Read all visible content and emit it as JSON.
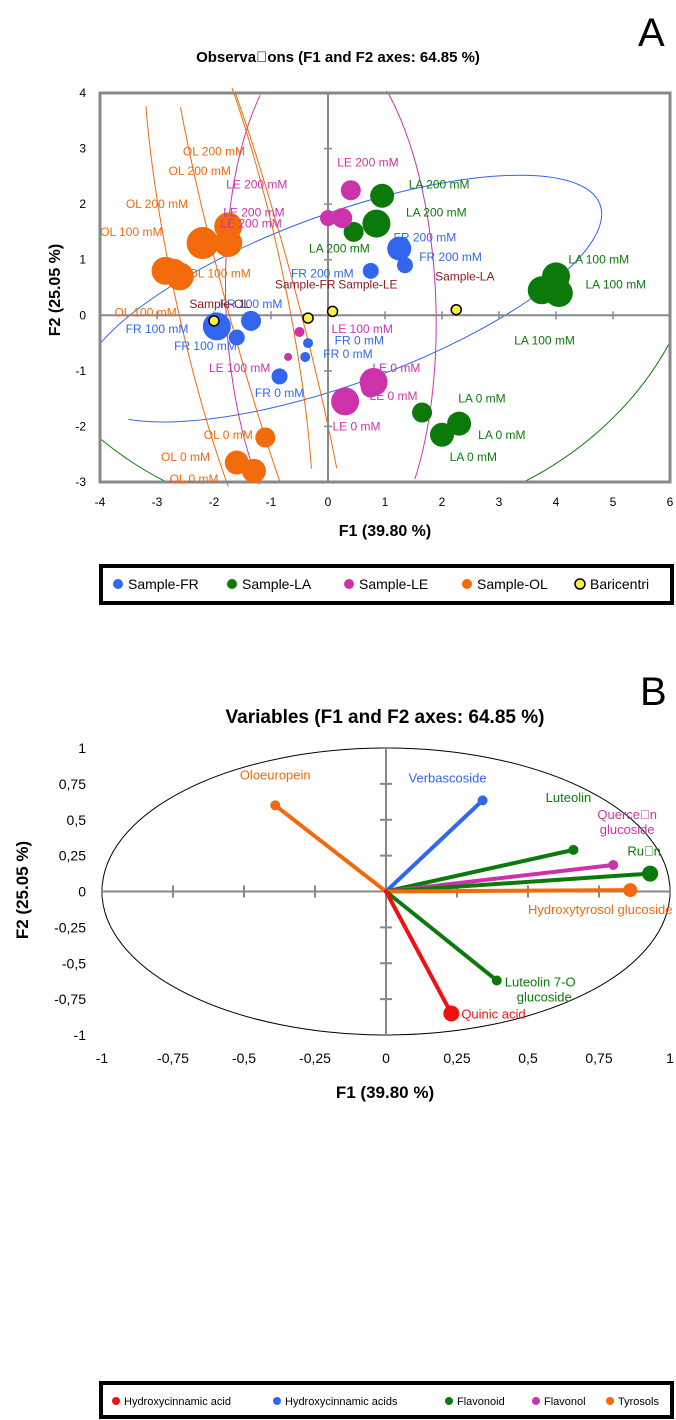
{
  "colors": {
    "FR": "#3366ee",
    "LA": "#0b7a0b",
    "LE": "#cc33aa",
    "OL": "#f26a0a",
    "bary_fill": "#ffee44",
    "bary_text": "#8b1a1a",
    "red": "#ee1111"
  },
  "chart_data": [
    {
      "type": "scatter",
      "panel": "A",
      "title": "Observa\u0000ons (F1 and F2 axes: 64.85 %)",
      "xlabel": "F1 (39.80 %)",
      "ylabel": "F2 (25.05 %)",
      "xlim": [
        -4,
        6
      ],
      "ylim": [
        -3,
        4
      ],
      "xticks": [
        "-4",
        "-3",
        "-2",
        "-1",
        "0",
        "1",
        "2",
        "3",
        "4",
        "5",
        "6"
      ],
      "yticks": [
        "-3",
        "-2",
        "-1",
        "0",
        "1",
        "2",
        "3",
        "4"
      ],
      "legend": [
        "Sample-FR",
        "Sample-LA",
        "Sample-LE",
        "Sample-OL",
        "Baricentri"
      ],
      "points": [
        {
          "s": "FR",
          "x": -1.95,
          "y": -0.2,
          "r": "xl"
        },
        {
          "s": "FR",
          "x": -1.35,
          "y": -0.1,
          "r": "m"
        },
        {
          "s": "FR",
          "x": -1.6,
          "y": -0.4,
          "r": "s"
        },
        {
          "s": "FR",
          "x": -0.85,
          "y": -1.1,
          "r": "s"
        },
        {
          "s": "FR",
          "x": -0.35,
          "y": -0.5,
          "r": "xs"
        },
        {
          "s": "FR",
          "x": -0.4,
          "y": -0.75,
          "r": "xs"
        },
        {
          "s": "FR",
          "x": 1.25,
          "y": 1.2,
          "r": "l"
        },
        {
          "s": "FR",
          "x": 1.35,
          "y": 0.9,
          "r": "s"
        },
        {
          "s": "FR",
          "x": 0.75,
          "y": 0.8,
          "r": "s"
        },
        {
          "s": "LA",
          "x": 4.0,
          "y": 0.7,
          "r": "xl"
        },
        {
          "s": "LA",
          "x": 3.75,
          "y": 0.45,
          "r": "xl"
        },
        {
          "s": "LA",
          "x": 4.05,
          "y": 0.4,
          "r": "xl"
        },
        {
          "s": "LA",
          "x": 0.95,
          "y": 2.15,
          "r": "l"
        },
        {
          "s": "LA",
          "x": 0.85,
          "y": 1.65,
          "r": "xl"
        },
        {
          "s": "LA",
          "x": 0.45,
          "y": 1.5,
          "r": "m"
        },
        {
          "s": "LA",
          "x": 2.3,
          "y": -1.95,
          "r": "l"
        },
        {
          "s": "LA",
          "x": 2.0,
          "y": -2.15,
          "r": "l"
        },
        {
          "s": "LA",
          "x": 1.65,
          "y": -1.75,
          "r": "m"
        },
        {
          "s": "LE",
          "x": 0.4,
          "y": 2.25,
          "r": "m"
        },
        {
          "s": "LE",
          "x": 0.0,
          "y": 1.75,
          "r": "s"
        },
        {
          "s": "LE",
          "x": 0.25,
          "y": 1.75,
          "r": "m"
        },
        {
          "s": "LE",
          "x": 0.8,
          "y": -1.2,
          "r": "xl"
        },
        {
          "s": "LE",
          "x": 0.75,
          "y": -1.3,
          "r": "m"
        },
        {
          "s": "LE",
          "x": 0.3,
          "y": -1.55,
          "r": "xl"
        },
        {
          "s": "LE",
          "x": -0.5,
          "y": -0.3,
          "r": "xs"
        },
        {
          "s": "LE",
          "x": -0.7,
          "y": -0.75,
          "r": "xxs"
        },
        {
          "s": "OL",
          "x": -2.2,
          "y": 1.3,
          "r": "xxl"
        },
        {
          "s": "OL",
          "x": -1.75,
          "y": 1.6,
          "r": "xl"
        },
        {
          "s": "OL",
          "x": -1.75,
          "y": 1.3,
          "r": "xl"
        },
        {
          "s": "OL",
          "x": -2.85,
          "y": 0.8,
          "r": "xl"
        },
        {
          "s": "OL",
          "x": -2.6,
          "y": 0.7,
          "r": "xl"
        },
        {
          "s": "OL",
          "x": -2.7,
          "y": 0.8,
          "r": "l"
        },
        {
          "s": "OL",
          "x": -1.6,
          "y": -2.65,
          "r": "l"
        },
        {
          "s": "OL",
          "x": -1.3,
          "y": -2.8,
          "r": "l"
        },
        {
          "s": "OL",
          "x": -1.1,
          "y": -2.2,
          "r": "m"
        }
      ],
      "barycenters": [
        {
          "label": "Sample-OL",
          "x": -2.0,
          "y": -0.1,
          "lx": -1.9,
          "ly": 0.2
        },
        {
          "label": "Sample-FR",
          "x": -0.35,
          "y": -0.05,
          "lx": -0.4,
          "ly": 0.55
        },
        {
          "label": "Sample-LE",
          "x": 0.08,
          "y": 0.07,
          "lx": 0.7,
          "ly": 0.55
        },
        {
          "label": "Sample-LA",
          "x": 2.25,
          "y": 0.1,
          "lx": 2.4,
          "ly": 0.7
        }
      ],
      "labels": [
        {
          "s": "OL",
          "t": "OL 200 mM",
          "x": -2.0,
          "y": 2.95
        },
        {
          "s": "OL",
          "t": "OL 200 mM",
          "x": -2.25,
          "y": 2.6
        },
        {
          "s": "OL",
          "t": "OL 200 mM",
          "x": -3.0,
          "y": 2.0
        },
        {
          "s": "OL",
          "t": "OL 100 mM",
          "x": -3.45,
          "y": 1.5
        },
        {
          "s": "OL",
          "t": "OL 100 mM",
          "x": -1.9,
          "y": 0.75
        },
        {
          "s": "OL",
          "t": "OL 100 mM",
          "x": -3.2,
          "y": 0.05
        },
        {
          "s": "OL",
          "t": "OL 0 mM",
          "x": -1.75,
          "y": -2.15
        },
        {
          "s": "OL",
          "t": "OL 0 mM",
          "x": -2.5,
          "y": -2.55
        },
        {
          "s": "OL",
          "t": "OL 0 mM",
          "x": -2.35,
          "y": -2.95
        },
        {
          "s": "LE",
          "t": "LE 200 mM",
          "x": -1.25,
          "y": 2.35
        },
        {
          "s": "LE",
          "t": "LE 200 mM",
          "x": -1.3,
          "y": 1.85
        },
        {
          "s": "LE",
          "t": "LE 200 mM",
          "x": -1.35,
          "y": 1.65
        },
        {
          "s": "LE",
          "t": "LE 200 mM",
          "x": 0.7,
          "y": 2.75
        },
        {
          "s": "LE",
          "t": "LE 100 mM",
          "x": 0.6,
          "y": -0.25
        },
        {
          "s": "LE",
          "t": "LE 100 mM",
          "x": -1.55,
          "y": -0.95
        },
        {
          "s": "LE",
          "t": "LE 0 mM",
          "x": 1.2,
          "y": -0.95
        },
        {
          "s": "LE",
          "t": "LE 0 mM",
          "x": 1.15,
          "y": -1.45
        },
        {
          "s": "LE",
          "t": "LE 0 mM",
          "x": 0.5,
          "y": -2.0
        },
        {
          "s": "LA",
          "t": "LA 200 mM",
          "x": 1.95,
          "y": 2.35
        },
        {
          "s": "LA",
          "t": "LA 200 mM",
          "x": 1.9,
          "y": 1.85
        },
        {
          "s": "LA",
          "t": "LA 200 mM",
          "x": 0.2,
          "y": 1.2
        },
        {
          "s": "LA",
          "t": "LA 100 mM",
          "x": 4.75,
          "y": 1.0
        },
        {
          "s": "LA",
          "t": "LA 100 mM",
          "x": 5.05,
          "y": 0.55
        },
        {
          "s": "LA",
          "t": "LA 100 mM",
          "x": 3.8,
          "y": -0.45
        },
        {
          "s": "LA",
          "t": "LA 0 mM",
          "x": 2.7,
          "y": -1.5
        },
        {
          "s": "LA",
          "t": "LA 0 mM",
          "x": 3.05,
          "y": -2.15
        },
        {
          "s": "LA",
          "t": "LA 0 mM",
          "x": 2.55,
          "y": -2.55
        },
        {
          "s": "FR",
          "t": "FR 100 mM",
          "x": -1.35,
          "y": 0.2
        },
        {
          "s": "FR",
          "t": "FR 100 mM",
          "x": -3.0,
          "y": -0.25
        },
        {
          "s": "FR",
          "t": "FR 100 mM",
          "x": -2.15,
          "y": -0.55
        },
        {
          "s": "FR",
          "t": "FR 200 mM",
          "x": 1.7,
          "y": 1.4
        },
        {
          "s": "FR",
          "t": "FR 200 mM",
          "x": 2.15,
          "y": 1.05
        },
        {
          "s": "FR",
          "t": "FR 200 mM",
          "x": -0.1,
          "y": 0.75
        },
        {
          "s": "FR",
          "t": "FR 0 mM",
          "x": 0.55,
          "y": -0.45
        },
        {
          "s": "FR",
          "t": "FR 0 mM",
          "x": 0.35,
          "y": -0.7
        },
        {
          "s": "FR",
          "t": "FR 0 mM",
          "x": -0.85,
          "y": -1.4
        }
      ]
    },
    {
      "type": "scatter",
      "panel": "B",
      "title": "Variables (F1 and F2 axes: 64.85 %)",
      "xlabel": "F1 (39.80 %)",
      "ylabel": "F2 (25.05 %)",
      "xlim": [
        -1,
        1
      ],
      "ylim": [
        -1,
        1
      ],
      "xticks": [
        "-1",
        "-0,75",
        "-0,5",
        "-0,25",
        "0",
        "0,25",
        "0,5",
        "0,75",
        "1"
      ],
      "yticks": [
        "1",
        "0,75",
        "0,5",
        "0,25",
        "0",
        "-0,25",
        "-0,5",
        "-0,75",
        "-1"
      ],
      "legend": [
        "Hydroxycinnamic acid",
        "Hydroxycinnamic acids",
        "Flavonoid",
        "Flavonol",
        "Tyrosols"
      ],
      "vectors": [
        {
          "name": "Oloeuropein",
          "group": "Tyrosols",
          "x": -0.39,
          "y": 0.6
        },
        {
          "name": "Verbascoside",
          "group": "Hydroxycinnamic acids",
          "x": 0.34,
          "y": 0.635
        },
        {
          "name": "Luteolin",
          "group": "Flavonoid",
          "x": 0.66,
          "y": 0.29
        },
        {
          "name": "Querce\u0000n glucoside",
          "group": "Flavonol",
          "x": 0.8,
          "y": 0.185
        },
        {
          "name": "Ru\u0000n",
          "group": "Flavonoid",
          "x": 0.93,
          "y": 0.125
        },
        {
          "name": "Hydroxytyrosol glucoside",
          "group": "Tyrosols",
          "x": 0.86,
          "y": 0.01
        },
        {
          "name": "Luteolin 7-O glucoside",
          "group": "Flavonoid",
          "x": 0.39,
          "y": -0.62
        },
        {
          "name": "Quinic acid",
          "group": "Hydroxycinnamic acid",
          "x": 0.23,
          "y": -0.85
        }
      ]
    }
  ]
}
